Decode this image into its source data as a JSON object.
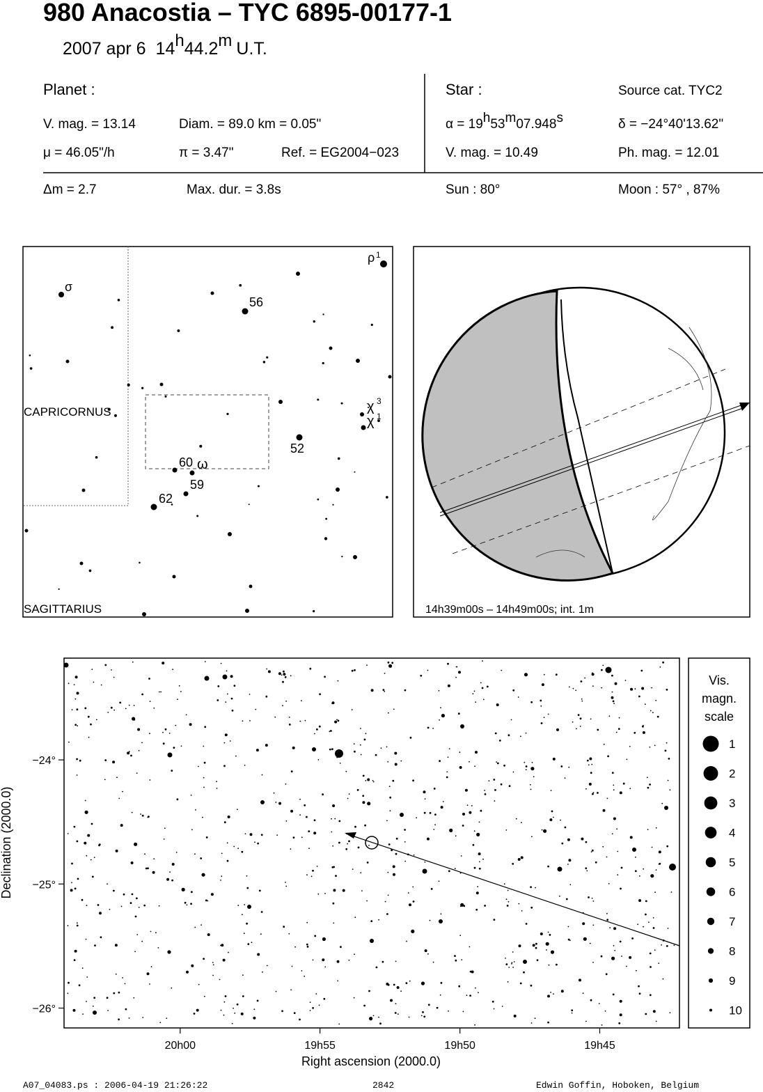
{
  "header": {
    "title": "980 Anacostia  –  TYC 6895-00177-1",
    "date": "2007 apr  6",
    "hours": "14",
    "hours_unit": "h",
    "minutes": "44.2",
    "minutes_unit": "m",
    "suffix": "U.T."
  },
  "planet": {
    "heading": "Planet :",
    "vmag": "V. mag. = 13.14",
    "diam": "Diam. = 89.0 km = 0.05\"",
    "mu": "μ =  46.05\"/h",
    "pi": "π =  3.47\"",
    "ref": "Ref. = EG2004−023",
    "dm": "Δm = 2.7",
    "maxdur": "Max. dur. = 3.8s"
  },
  "star": {
    "heading": "Star :",
    "source": "Source cat.  TYC2",
    "alpha_prefix": "α = 19",
    "alpha_h": "h",
    "alpha_min": "53",
    "alpha_m": "m",
    "alpha_sec": "07.948",
    "alpha_s": "s",
    "delta": "δ = −24°40'13.62\"",
    "vmag": "V. mag. = 10.49",
    "phmag": "Ph. mag. = 12.01",
    "sun": "Sun :  80°",
    "moon": "Moon :  57° , 87%"
  },
  "finder": {
    "labels": [
      "σ",
      "56",
      "ρ",
      "1",
      "CAPRICORNUS",
      "SAGITTARIUS",
      "χ",
      "3",
      "χ",
      "1",
      "52",
      "60",
      "ω",
      "59",
      "62"
    ]
  },
  "globe": {
    "caption": "14h39m00s – 14h49m00s; int.  1m"
  },
  "chart": {
    "x_label": "Right ascension (2000.0)",
    "y_label": "Declination (2000.0)",
    "xlim": [
      20.0692,
      19.7025
    ],
    "ylim": [
      -23.18,
      -26.16
    ],
    "xticks": [
      {
        "value": 20.0,
        "label": "20h00"
      },
      {
        "value": 19.9167,
        "label": "19h55"
      },
      {
        "value": 19.8333,
        "label": "19h50"
      },
      {
        "value": 19.75,
        "label": "19h45"
      }
    ],
    "yticks": [
      {
        "value": -24,
        "label": "−24°"
      },
      {
        "value": -25,
        "label": "−25°"
      },
      {
        "value": -26,
        "label": "−26°"
      }
    ]
  },
  "legend": {
    "title": [
      "Vis.",
      "magn.",
      "scale"
    ],
    "labels": [
      1,
      2,
      3,
      4,
      5,
      6,
      7,
      8,
      9,
      10
    ]
  },
  "footer": {
    "file": "A07_04083.ps : 2006-04-19 21:26:22",
    "number": "2842",
    "author": "Edwin Goffin, Hoboken, Belgium"
  }
}
